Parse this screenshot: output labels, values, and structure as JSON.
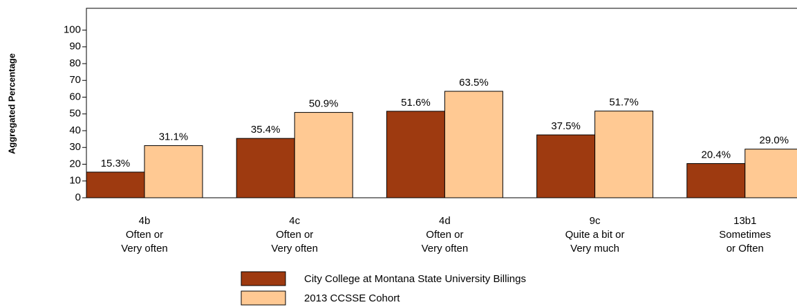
{
  "chart_data": {
    "type": "bar",
    "y_axis_label": "Aggregated Percentage",
    "categories": [
      [
        "4b",
        "Often or",
        "Very often"
      ],
      [
        "4c",
        "Often or",
        "Very often"
      ],
      [
        "4d",
        "Often or",
        "Very often"
      ],
      [
        "9c",
        "Quite a bit or",
        "Very much"
      ],
      [
        "13b1",
        "Sometimes",
        "or Often"
      ]
    ],
    "series": [
      {
        "name": "City College at Montana State University Billings",
        "color": "#9e3a10",
        "values": [
          15.3,
          35.4,
          51.6,
          37.5,
          20.4
        ],
        "value_labels": [
          "15.3%",
          "35.4%",
          "51.6%",
          "37.5%",
          "20.4%"
        ]
      },
      {
        "name": "2013 CCSSE Cohort",
        "color": "#ffc993",
        "values": [
          31.1,
          50.9,
          63.5,
          51.7,
          29.0
        ],
        "value_labels": [
          "31.1%",
          "50.9%",
          "63.5%",
          "51.7%",
          "29.0%"
        ]
      }
    ],
    "ylim": [
      0,
      113
    ],
    "yticks": [
      0,
      10,
      20,
      30,
      40,
      50,
      60,
      70,
      80,
      90,
      100
    ]
  }
}
